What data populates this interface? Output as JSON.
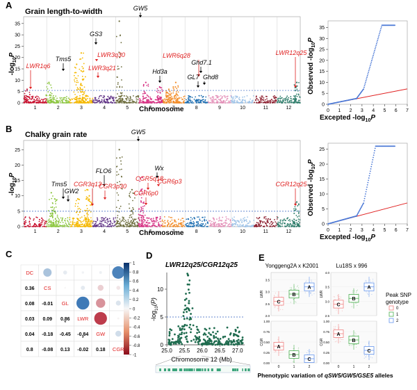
{
  "panels": {
    "A": {
      "letter": "A",
      "title": "Grain length-to-width",
      "ylabel": "-log",
      "ylabel_sub": "10",
      "ylabel_p": "P",
      "xlabel": "Chromosome",
      "yticks": [
        "0",
        "5",
        "10",
        "15",
        "20",
        "25",
        "30",
        "35"
      ],
      "chromosomes": [
        "1",
        "2",
        "3",
        "4",
        "5",
        "6",
        "7",
        "8",
        "9",
        "10",
        "11",
        "12"
      ],
      "threshold_label": "",
      "annotations": [
        {
          "label": "LWR1q6",
          "color": "#e02020",
          "italic": true
        },
        {
          "label": "Tms5",
          "color": "#000000",
          "italic": true
        },
        {
          "label": "GS3",
          "color": "#000000",
          "italic": true
        },
        {
          "label": "LWR3q30",
          "color": "#e02020",
          "italic": true
        },
        {
          "label": "LWR3q21",
          "color": "#e02020",
          "italic": true
        },
        {
          "label": "GW5",
          "color": "#000000",
          "italic": true
        },
        {
          "label": "Hd3a",
          "color": "#000000",
          "italic": true
        },
        {
          "label": "LWR6q28",
          "color": "#e02020",
          "italic": true
        },
        {
          "label": "Ghd7.1",
          "color": "#000000",
          "italic": true
        },
        {
          "label": "GL7",
          "color": "#000000",
          "italic": true
        },
        {
          "label": "Ghd8",
          "color": "#000000",
          "italic": true
        },
        {
          "label": "LWR12q25",
          "color": "#e02020",
          "italic": true
        }
      ]
    },
    "A_qq": {
      "ylabel": "Observed -log",
      "xlabel": "Excepted -log",
      "sub": "10",
      "p": "P",
      "xticks": [
        "0",
        "1",
        "2",
        "3",
        "4",
        "5",
        "6",
        "7"
      ],
      "yticks": [
        "0",
        "5",
        "10",
        "15",
        "20",
        "25",
        "30",
        "35"
      ]
    },
    "B": {
      "letter": "B",
      "title": "Chalky grain rate",
      "ylabel": "-log",
      "ylabel_sub": "10",
      "ylabel_p": "P",
      "xlabel": "Chromosome",
      "yticks": [
        "0",
        "5",
        "10",
        "15",
        "20",
        "25"
      ],
      "chromosomes": [
        "1",
        "2",
        "3",
        "4",
        "5",
        "6",
        "7",
        "8",
        "9",
        "10",
        "11",
        "12"
      ],
      "annotations": [
        {
          "label": "Tms5",
          "color": "#000000",
          "italic": true
        },
        {
          "label": "GW2",
          "color": "#000000",
          "italic": true
        },
        {
          "label": "CGR3q13",
          "color": "#e02020",
          "italic": true
        },
        {
          "label": "FLO6",
          "color": "#000000",
          "italic": true
        },
        {
          "label": "CGR3p30",
          "color": "#e02020",
          "italic": true
        },
        {
          "label": "GW5",
          "color": "#000000",
          "italic": true
        },
        {
          "label": "CGR5q18",
          "color": "#e02020",
          "italic": true
        },
        {
          "label": "Wx",
          "color": "#000000",
          "italic": true
        },
        {
          "label": "CGR6p0",
          "color": "#e02020",
          "italic": true
        },
        {
          "label": "CGR6p3",
          "color": "#e02020",
          "italic": true
        },
        {
          "label": "CGR12q25",
          "color": "#e02020",
          "italic": true
        }
      ]
    },
    "B_qq": {
      "ylabel": "Observed -log",
      "xlabel": "Excepted -log",
      "sub": "10",
      "p": "P",
      "xticks": [
        "0",
        "1",
        "2",
        "3",
        "4",
        "5",
        "6",
        "7"
      ],
      "yticks": [
        "0",
        "5",
        "10",
        "15",
        "20",
        "25"
      ]
    },
    "C": {
      "letter": "C",
      "traits": [
        "DC",
        "CS",
        "GL",
        "LWR",
        "GW",
        "CGR"
      ],
      "colorbar_ticks": [
        "1",
        "0.8",
        "0.6",
        "0.4",
        "0.2",
        "0",
        "-0.2",
        "-0.4",
        "-0.6",
        "-0.8",
        "-1"
      ]
    },
    "D": {
      "letter": "D",
      "title": "LWR12q25/CGR12q25",
      "ylabel": "-log",
      "ylabel_sub": "10",
      "ylabel_p": "(P)",
      "xlabel": "Chromosome 12 (Mb)",
      "xticks": [
        "25.0",
        "25.5",
        "26.0",
        "26.5",
        "27.0"
      ],
      "yticks": [
        "0",
        "5",
        "10"
      ]
    },
    "E": {
      "letter": "E",
      "cross1": "Yonggeng2A x K2001",
      "cross2": "Lu18S x 996",
      "legend_title1": "Peak SNP",
      "legend_title2": "genotype",
      "genotypes": [
        "0",
        "1",
        "2"
      ],
      "genotype_colors": [
        "#f08080",
        "#4caf50",
        "#6495ed"
      ],
      "ylabel_top": "LWR",
      "ylabel_bottom": "CGR",
      "caption_prefix": "Phenotypic variation of ",
      "caption_genes": "qSW5/GW5/GSE5",
      "caption_suffix": " alleles",
      "top1_letters": [
        "C",
        "B",
        "A"
      ],
      "top2_letters": [
        "C",
        "B",
        "A"
      ],
      "bot1_letters": [
        "A",
        "B",
        "C"
      ],
      "bot2_letters": [
        "A",
        "B",
        "C"
      ],
      "xticks": [
        "0",
        "1",
        "2"
      ]
    }
  },
  "chart_data": [
    {
      "type": "scatter",
      "name_hint": "manhattan_A",
      "chromosomes": [
        "1",
        "2",
        "3",
        "4",
        "5",
        "6",
        "7",
        "8",
        "9",
        "10",
        "11",
        "12"
      ],
      "ylim": [
        0,
        38
      ],
      "threshold": 5.5,
      "peaks": [
        {
          "chr": 1,
          "pos": 0.15,
          "y": 6
        },
        {
          "chr": 2,
          "pos": 0.1,
          "y": 9
        },
        {
          "chr": 3,
          "pos": 0.3,
          "y": 17
        },
        {
          "chr": 3,
          "pos": 0.5,
          "y": 22
        },
        {
          "chr": 3,
          "pos": 0.6,
          "y": 14
        },
        {
          "chr": 5,
          "pos": 0.15,
          "y": 36
        },
        {
          "chr": 6,
          "pos": 0.3,
          "y": 9
        },
        {
          "chr": 6,
          "pos": 0.9,
          "y": 7
        },
        {
          "chr": 7,
          "pos": 0.3,
          "y": 6
        },
        {
          "chr": 7,
          "pos": 0.6,
          "y": 9
        },
        {
          "chr": 12,
          "pos": 0.85,
          "y": 9
        }
      ],
      "chr_colors": [
        "#c8102e",
        "#8cc63f",
        "#f5b800",
        "#5b2c83",
        "#6b6b3a",
        "#d63384",
        "#f28c28",
        "#1f6fb2",
        "#e48fb8",
        "#a0c4e8",
        "#8b1a2b",
        "#2e7d6b"
      ]
    },
    {
      "type": "scatter",
      "name_hint": "qq_A",
      "xlim": [
        0,
        7
      ],
      "ylim": [
        0,
        38
      ],
      "expected_line": [
        [
          0,
          0
        ],
        [
          7,
          7
        ]
      ]
    },
    {
      "type": "scatter",
      "name_hint": "manhattan_B",
      "chromosomes": [
        "1",
        "2",
        "3",
        "4",
        "5",
        "6",
        "7",
        "8",
        "9",
        "10",
        "11",
        "12"
      ],
      "ylim": [
        0,
        28
      ],
      "threshold": 5,
      "peaks": [
        {
          "chr": 2,
          "pos": 0.2,
          "y": 11
        },
        {
          "chr": 2,
          "pos": 0.35,
          "y": 9
        },
        {
          "chr": 3,
          "pos": 0.35,
          "y": 9
        },
        {
          "chr": 3,
          "pos": 0.75,
          "y": 12
        },
        {
          "chr": 3,
          "pos": 0.85,
          "y": 10
        },
        {
          "chr": 5,
          "pos": 0.15,
          "y": 25
        },
        {
          "chr": 5,
          "pos": 0.7,
          "y": 12
        },
        {
          "chr": 6,
          "pos": 0.1,
          "y": 8
        },
        {
          "chr": 6,
          "pos": 0.15,
          "y": 16
        },
        {
          "chr": 12,
          "pos": 0.85,
          "y": 8
        }
      ]
    },
    {
      "type": "scatter",
      "name_hint": "qq_B",
      "xlim": [
        0,
        7
      ],
      "ylim": [
        0,
        27
      ],
      "expected_line": [
        [
          0,
          0
        ],
        [
          7,
          7
        ]
      ]
    },
    {
      "type": "heatmap",
      "name_hint": "correlation_C",
      "labels": [
        "DC",
        "CS",
        "GL",
        "LWR",
        "GW",
        "CGR"
      ],
      "lower": [
        [
          null,
          null,
          null,
          null,
          null,
          null
        ],
        [
          0.36,
          null,
          null,
          null,
          null,
          null
        ],
        [
          0.08,
          -0.01,
          null,
          null,
          null,
          null
        ],
        [
          0.03,
          0.09,
          0.86,
          null,
          null,
          null
        ],
        [
          0.04,
          -0.18,
          -0.45,
          -0.84,
          null,
          null
        ],
        [
          0.8,
          -0.08,
          0.13,
          -0.02,
          0.18,
          null
        ]
      ],
      "stars": [
        [
          3,
          2
        ],
        [
          4,
          3
        ]
      ],
      "colorbar_range": [
        -1,
        1
      ]
    },
    {
      "type": "scatter",
      "name_hint": "regional_D",
      "xlim": [
        25.0,
        27.2
      ],
      "ylim": [
        0,
        13
      ],
      "threshold": 5,
      "peak": {
        "x": 25.6,
        "y": 12.5
      }
    },
    {
      "type": "table",
      "name_hint": "boxplots_E",
      "panels": [
        {
          "cross": "Yonggeng2A x K2001",
          "trait": "LWR",
          "groups": [
            "0",
            "1",
            "2"
          ],
          "medians": [
            2.6,
            2.9,
            3.2
          ],
          "letters": [
            "C",
            "B",
            "A"
          ]
        },
        {
          "cross": "Lu18S x 996",
          "trait": "LWR",
          "groups": [
            "0",
            "1",
            "2"
          ],
          "medians": [
            2.9,
            3.1,
            3.5
          ],
          "letters": [
            "C",
            "B",
            "A"
          ]
        },
        {
          "cross": "Yonggeng2A x K2001",
          "trait": "CGR",
          "groups": [
            "0",
            "1",
            "2"
          ],
          "medians": [
            0.4,
            0.2,
            0.1
          ],
          "letters": [
            "A",
            "B",
            "C"
          ]
        },
        {
          "cross": "Lu18S x 996",
          "trait": "CGR",
          "groups": [
            "0",
            "1",
            "2"
          ],
          "medians": [
            0.7,
            0.55,
            0.3
          ],
          "letters": [
            "A",
            "B",
            "C"
          ]
        }
      ]
    }
  ]
}
